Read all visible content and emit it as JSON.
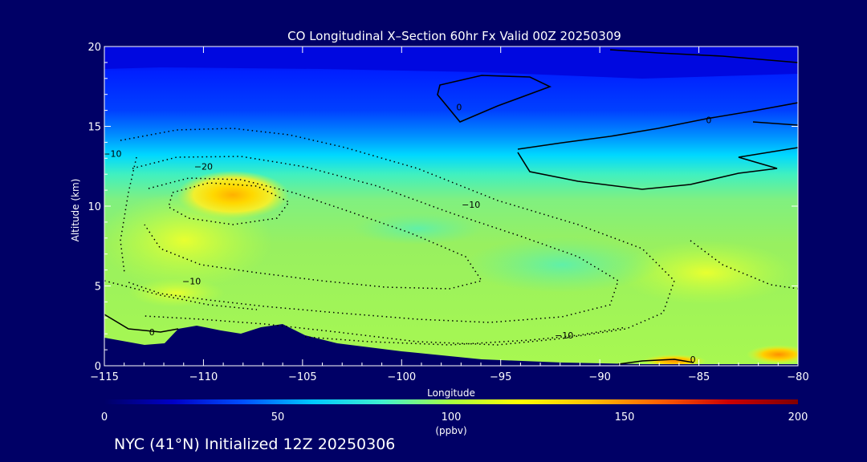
{
  "chart_data": {
    "type": "heatmap",
    "title": "CO Longitudinal X–Section 60hr  Fx Valid 00Z 20250309",
    "xlabel": "Longitude",
    "ylabel": "Altitude (km)",
    "xlim": [
      -115,
      -80
    ],
    "ylim": [
      0,
      20
    ],
    "x_ticks": [
      "−115",
      "−110",
      "−105",
      "−100",
      "−95",
      "−90",
      "−85",
      "−80"
    ],
    "y_ticks": [
      "0",
      "5",
      "10",
      "15",
      "20"
    ],
    "colorbar": {
      "label": "(ppbv)",
      "range": [
        0,
        200
      ],
      "ticks": [
        "0",
        "50",
        "100",
        "150",
        "200"
      ],
      "colors": [
        "#000066",
        "#0000c8",
        "#0050ff",
        "#00c8ff",
        "#40f0d0",
        "#a8ff40",
        "#ffff00",
        "#ffc000",
        "#ff6000",
        "#cc0000",
        "#800000"
      ]
    },
    "contour_labels": [
      {
        "text": "−20",
        "lon": -110,
        "alt": 12.5
      },
      {
        "text": "−10",
        "lon": -114.6,
        "alt": 13.3
      },
      {
        "text": "−10",
        "lon": -110.6,
        "alt": 5.3
      },
      {
        "text": "−10",
        "lon": -96.5,
        "alt": 10.1
      },
      {
        "text": "−10",
        "lon": -91.8,
        "alt": 1.9
      },
      {
        "text": "0",
        "lon": -112.6,
        "alt": 2.1
      },
      {
        "text": "0",
        "lon": -85.3,
        "alt": 0.4
      },
      {
        "text": "0",
        "lon": -84.5,
        "alt": 15.4
      },
      {
        "text": "0",
        "lon": -97.1,
        "alt": 16.2
      }
    ]
  },
  "footer": "NYC (41°N) Initialized 12Z 20250306"
}
